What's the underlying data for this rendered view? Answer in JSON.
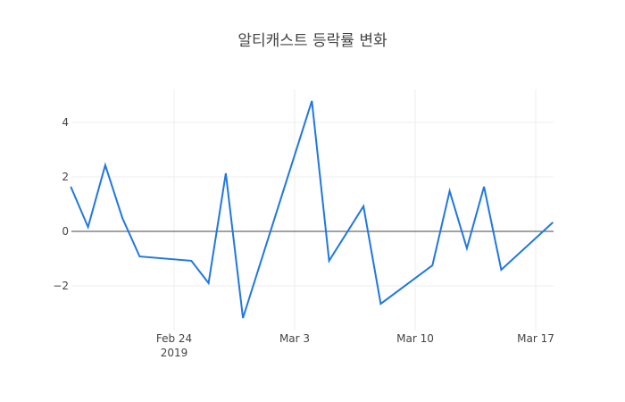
{
  "title": "알티캐스트 등락률 변화",
  "chart_data": {
    "type": "line",
    "title": "알티캐스트 등락률 변화",
    "xlabel": "",
    "ylabel": "",
    "x": [
      "2019-02-18",
      "2019-02-19",
      "2019-02-20",
      "2019-02-21",
      "2019-02-22",
      "2019-02-25",
      "2019-02-26",
      "2019-02-27",
      "2019-02-28",
      "2019-03-04",
      "2019-03-05",
      "2019-03-07",
      "2019-03-08",
      "2019-03-11",
      "2019-03-12",
      "2019-03-13",
      "2019-03-14",
      "2019-03-15",
      "2019-03-18"
    ],
    "series": [
      {
        "name": "등락률",
        "color": "#1f77e4",
        "values": [
          1.64,
          0.16,
          2.43,
          0.49,
          -0.92,
          -1.08,
          -1.9,
          2.13,
          -3.18,
          4.79,
          -1.08,
          0.92,
          -2.66,
          -1.25,
          1.48,
          -0.62,
          1.64,
          -1.41,
          0.33
        ]
      }
    ],
    "x_ticks": [
      {
        "label": "Feb 24",
        "sublabel": "2019",
        "date": "2019-02-24"
      },
      {
        "label": "Mar 3",
        "sublabel": "",
        "date": "2019-03-03"
      },
      {
        "label": "Mar 10",
        "sublabel": "",
        "date": "2019-03-10"
      },
      {
        "label": "Mar 17",
        "sublabel": "",
        "date": "2019-03-17"
      }
    ],
    "y_ticks": [
      4,
      2,
      0,
      -2
    ],
    "y_tick_labels": [
      "4",
      "2",
      "0",
      "−2"
    ],
    "ylim": [
      -3.5,
      5.2
    ],
    "grid": true,
    "legend": "none"
  }
}
